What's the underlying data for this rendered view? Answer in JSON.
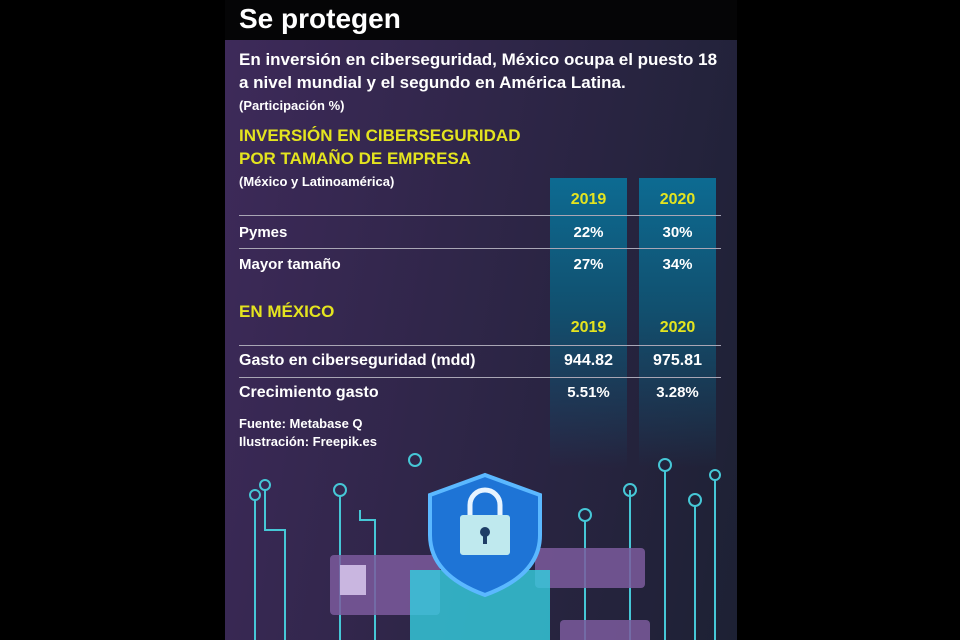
{
  "title": "Se protegen",
  "intro": "En inversión en ciberseguridad, México ocupa el puesto 18",
  "intro2": "a nivel mundial y el segundo en América Latina.",
  "unit": "(Participación %)",
  "section1": {
    "title1": "INVERSIÓN EN CIBERSEGURIDAD",
    "title2": "POR TAMAÑO DE EMPRESA",
    "subtitle": "(México y Latinoamérica)",
    "years": [
      "2019",
      "2020"
    ],
    "rows": [
      {
        "label": "Pymes",
        "values": [
          "22%",
          "30%"
        ]
      },
      {
        "label": "Mayor tamaño",
        "values": [
          "27%",
          "34%"
        ]
      }
    ]
  },
  "section2": {
    "title": "EN MÉXICO",
    "years": [
      "2019",
      "2020"
    ],
    "rows": [
      {
        "label": "Gasto en ciberseguridad (mdd)",
        "values": [
          "944.82",
          "975.81"
        ]
      },
      {
        "label": "Crecimiento gasto",
        "values": [
          "5.51%",
          "3.28%"
        ]
      }
    ]
  },
  "source": "Fuente: Metabase Q",
  "illustration": "Ilustración: Freepik.es",
  "chart_data": {
    "type": "table",
    "title": "Se protegen",
    "tables": [
      {
        "title": "INVERSIÓN EN CIBERSEGURIDAD POR TAMAÑO DE EMPRESA",
        "columns": [
          "2019",
          "2020"
        ],
        "rows": [
          [
            "Pymes",
            22,
            30
          ],
          [
            "Mayor tamaño",
            27,
            34
          ]
        ],
        "unit": "%"
      },
      {
        "title": "EN MÉXICO",
        "columns": [
          "2019",
          "2020"
        ],
        "rows": [
          [
            "Gasto en ciberseguridad (mdd)",
            944.82,
            975.81
          ],
          [
            "Crecimiento gasto (%)",
            5.51,
            3.28
          ]
        ]
      }
    ]
  }
}
